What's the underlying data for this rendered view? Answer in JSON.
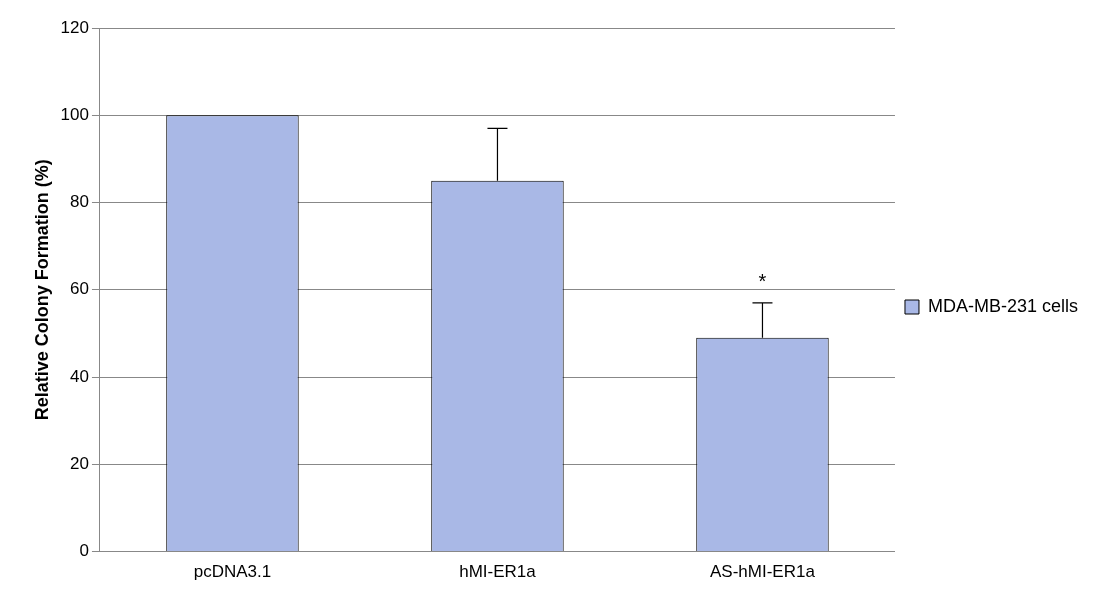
{
  "chart_data": {
    "type": "bar",
    "ylabel": "Relative Colony Formation (%)",
    "categories": [
      "pcDNA3.1",
      "hMI-ER1a",
      "AS-hMI-ER1a"
    ],
    "series": [
      {
        "name": "MDA-MB-231 cells",
        "color": "#a9b8e6",
        "values": [
          100,
          85,
          49
        ],
        "errors": [
          null,
          [
            85,
            97
          ],
          [
            49,
            57
          ]
        ]
      }
    ],
    "ylim": [
      0,
      120
    ],
    "yticks": [
      0,
      20,
      40,
      60,
      80,
      100,
      120
    ],
    "grid": "y",
    "legend": "right",
    "annotations": [
      {
        "text": "*",
        "x": "AS-hMI-ER1a",
        "y": 57
      }
    ]
  }
}
